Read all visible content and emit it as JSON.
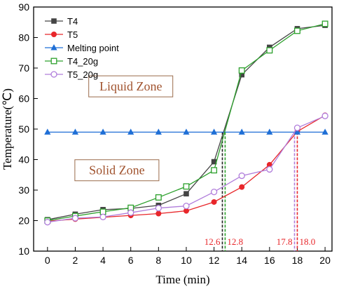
{
  "chart_data": {
    "type": "line",
    "title": "",
    "xlabel": "Time (min)",
    "ylabel": "Temperature(℃)",
    "xlim": [
      -1,
      20.5
    ],
    "ylim": [
      10,
      90
    ],
    "xticks": [
      0,
      2,
      4,
      6,
      8,
      10,
      12,
      14,
      16,
      18,
      20
    ],
    "yticks": [
      10,
      20,
      30,
      40,
      50,
      60,
      70,
      80,
      90
    ],
    "legend_position": "top-left",
    "grid": false,
    "series": [
      {
        "name": "T4",
        "color": "#444444",
        "marker": "filled-square",
        "x": [
          0,
          2,
          4,
          6,
          8,
          10,
          12,
          14,
          16,
          18,
          20
        ],
        "y": [
          20.3,
          22.1,
          23.6,
          24.0,
          25.0,
          28.8,
          39.3,
          67.8,
          76.8,
          82.9,
          84.0
        ]
      },
      {
        "name": "T5",
        "color": "#e8262a",
        "marker": "filled-circle",
        "x": [
          0,
          2,
          4,
          6,
          8,
          10,
          12,
          14,
          16,
          18,
          20
        ],
        "y": [
          19.8,
          20.5,
          21.1,
          21.7,
          22.3,
          23.2,
          26.1,
          31.0,
          38.3,
          49.2,
          54.5
        ]
      },
      {
        "name": "Melting point",
        "color": "#1f6fd6",
        "marker": "filled-triangle",
        "x": [
          0,
          2,
          4,
          6,
          8,
          10,
          12,
          14,
          16,
          18,
          20
        ],
        "y": [
          49,
          49,
          49,
          49,
          49,
          49,
          49,
          49,
          49,
          49,
          49
        ]
      },
      {
        "name": "T4_20g",
        "color": "#2ca02c",
        "marker": "open-square",
        "x": [
          0,
          2,
          4,
          6,
          8,
          10,
          12,
          14,
          16,
          18,
          20
        ],
        "y": [
          20.0,
          21.5,
          22.9,
          24.2,
          27.6,
          31.2,
          36.5,
          69.2,
          75.8,
          82.2,
          84.5
        ]
      },
      {
        "name": "T5_20g",
        "color": "#b07ddb",
        "marker": "open-circle",
        "x": [
          0,
          2,
          4,
          6,
          8,
          10,
          12,
          14,
          16,
          18,
          20
        ],
        "y": [
          19.5,
          20.8,
          21.2,
          22.6,
          24.1,
          24.8,
          29.4,
          34.7,
          36.8,
          50.4,
          54.3
        ]
      }
    ],
    "annotations": [
      {
        "text": "Liquid Zone",
        "x": 6,
        "y": 64
      },
      {
        "text": "Solid Zone",
        "x": 5,
        "y": 36.5
      },
      {
        "text": "12.6",
        "x": 12.6,
        "color": "#222222",
        "dash": true
      },
      {
        "text": "12.8",
        "x": 12.8,
        "color": "#2ca02c",
        "dash": true
      },
      {
        "text": "17.8",
        "x": 17.8,
        "color": "#b07ddb",
        "dash": true
      },
      {
        "text": "18.0",
        "x": 18.0,
        "color": "#e8262a",
        "dash": true
      }
    ]
  }
}
